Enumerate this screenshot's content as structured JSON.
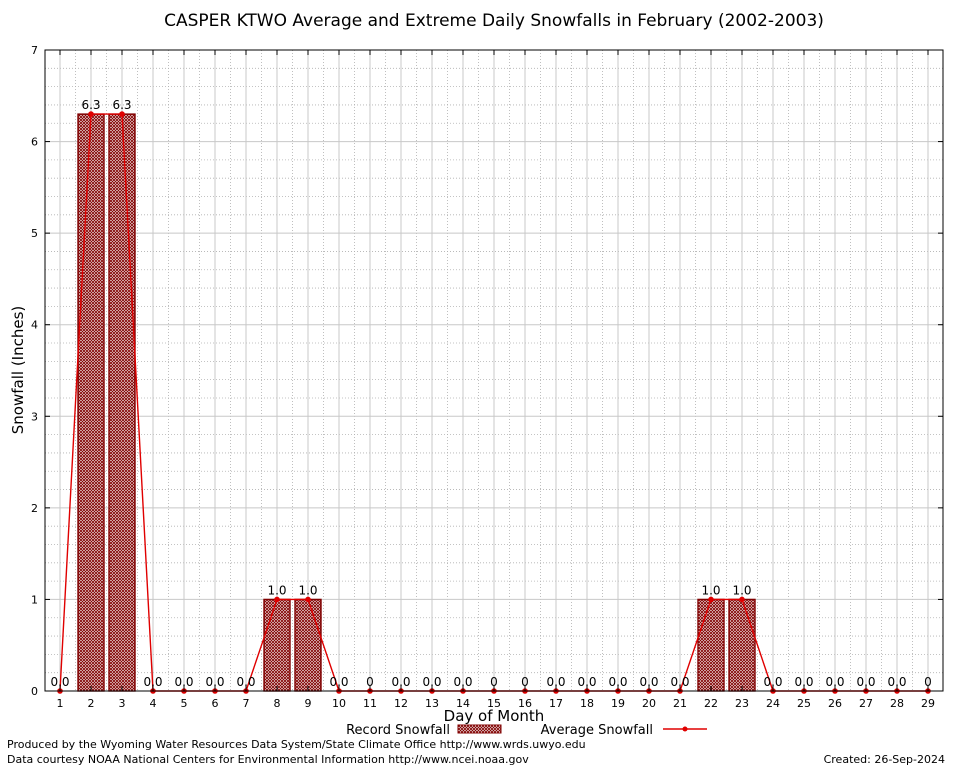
{
  "chart_data": {
    "type": "bar",
    "title": "CASPER KTWO Average and Extreme Daily Snowfalls in February (2002-2003)",
    "xlabel": "Day of Month",
    "ylabel": "Snowfall (Inches)",
    "ylim": [
      0,
      7
    ],
    "yticks": [
      "0",
      "1",
      "2",
      "3",
      "4",
      "5",
      "6",
      "7"
    ],
    "categories": [
      "1",
      "2",
      "3",
      "4",
      "5",
      "6",
      "7",
      "8",
      "9",
      "10",
      "11",
      "12",
      "13",
      "14",
      "15",
      "16",
      "17",
      "18",
      "19",
      "20",
      "21",
      "22",
      "23",
      "24",
      "25",
      "26",
      "27",
      "28",
      "29"
    ],
    "grid": true,
    "legend_position": "bottom",
    "series": [
      {
        "name": "Record Snowfall",
        "type": "bar",
        "color": "#800000",
        "values": [
          0,
          6.3,
          6.3,
          0,
          0,
          0,
          0,
          1.0,
          1.0,
          0,
          0,
          0,
          0,
          0,
          0,
          0,
          0,
          0,
          0,
          0,
          0,
          1.0,
          1.0,
          0,
          0,
          0,
          0,
          0,
          0
        ],
        "labels": [
          "0.0",
          "6.3",
          "6.3",
          "0.0",
          "0.0",
          "0.0",
          "0.0",
          "1.0",
          "1.0",
          "0.0",
          "0",
          "0.0",
          "0.0",
          "0.0",
          "0",
          "0",
          "0.0",
          "0.0",
          "0.0",
          "0.0",
          "0.0",
          "1.0",
          "1.0",
          "0.0",
          "0.0",
          "0.0",
          "0.0",
          "0.0",
          "0"
        ]
      },
      {
        "name": "Average Snowfall",
        "type": "line",
        "color": "#e00000",
        "values": [
          0,
          6.3,
          6.3,
          0,
          0,
          0,
          0,
          1.0,
          1.0,
          0,
          0,
          0,
          0,
          0,
          0,
          0,
          0,
          0,
          0,
          0,
          0,
          1.0,
          1.0,
          0,
          0,
          0,
          0,
          0,
          0
        ]
      }
    ]
  },
  "footer": {
    "line1": "Produced by the Wyoming Water Resources Data System/State Climate Office http://www.wrds.uwyo.edu",
    "line2": "Data courtesy NOAA National Centers for Environmental Information http://www.ncei.noaa.gov",
    "created": "Created:  26-Sep-2024"
  }
}
